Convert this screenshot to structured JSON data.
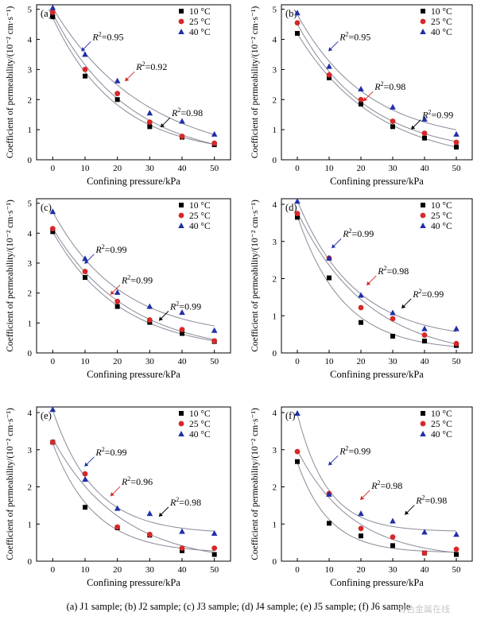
{
  "caption": "(a) J1 sample; (b) J2 sample; (c) J3 sample; (d) J4 sample; (e) J5 sample; (f) J6 sample",
  "watermark": "有色金属在线",
  "colors": {
    "10 °C": "#000000",
    "25 °C": "#d62828",
    "40 °C": "#1f2fa8",
    "fit": "#8a8a9a"
  },
  "chart_data": [
    {
      "type": "scatter",
      "panel_label": "(a)",
      "xlabel": "Confining pressure/kPa",
      "ylabel": "Coefficient of permeability/(10⁻² cm·s⁻¹)",
      "xlim": [
        0,
        50
      ],
      "ylim": [
        0,
        5
      ],
      "x_ticks": [
        "0",
        "10",
        "20",
        "30",
        "40",
        "50"
      ],
      "y_ticks": [
        "0",
        "1",
        "2",
        "3",
        "4",
        "5"
      ],
      "x": [
        0,
        10,
        20,
        30,
        40,
        50
      ],
      "series": [
        {
          "name": "10 °C",
          "marker": "square",
          "values": [
            4.75,
            2.78,
            2.0,
            1.1,
            0.75,
            0.5
          ]
        },
        {
          "name": "25 °C",
          "marker": "circle",
          "values": [
            4.9,
            3.0,
            2.2,
            1.25,
            0.78,
            0.55
          ]
        },
        {
          "name": "40 °C",
          "marker": "triangle",
          "values": [
            5.05,
            3.5,
            2.62,
            1.55,
            1.28,
            0.85
          ]
        }
      ],
      "annotations": [
        {
          "sup": "2",
          "value": "=0.95",
          "x": 12.3,
          "y": 3.98
        },
        {
          "sup": "2",
          "value": "=0.92",
          "x": 25.8,
          "y": 2.98
        },
        {
          "sup": "2",
          "value": "=0.98",
          "x": 36.8,
          "y": 1.45
        }
      ],
      "legend": "top-right"
    },
    {
      "type": "scatter",
      "panel_label": "(b)",
      "xlabel": "Confining pressure/kPa",
      "ylabel": "Coefficient of permeability/(10⁻² cm·s⁻¹)",
      "xlim": [
        0,
        50
      ],
      "ylim": [
        0,
        5
      ],
      "x_ticks": [
        "0",
        "10",
        "20",
        "30",
        "40",
        "50"
      ],
      "y_ticks": [
        "0",
        "1",
        "2",
        "3",
        "4",
        "5"
      ],
      "x": [
        0,
        10,
        20,
        30,
        40,
        50
      ],
      "series": [
        {
          "name": "10 °C",
          "marker": "square",
          "values": [
            4.2,
            2.72,
            1.85,
            1.1,
            0.72,
            0.42
          ]
        },
        {
          "name": "25 °C",
          "marker": "circle",
          "values": [
            4.55,
            2.82,
            2.0,
            1.28,
            0.88,
            0.58
          ]
        },
        {
          "name": "40 °C",
          "marker": "triangle",
          "values": [
            4.88,
            3.1,
            2.35,
            1.75,
            1.35,
            0.85
          ]
        }
      ],
      "annotations": [
        {
          "sup": "2",
          "value": "=0.95",
          "x": 13.3,
          "y": 3.98
        },
        {
          "sup": "2",
          "value": "=0.98",
          "x": 24.3,
          "y": 2.32
        },
        {
          "sup": "2",
          "value": "=0.99",
          "x": 39.3,
          "y": 1.38
        }
      ],
      "legend": "top-right"
    },
    {
      "type": "scatter",
      "panel_label": "(c)",
      "xlabel": "Confining pressure/kPa",
      "ylabel": "Coefficient of permeability/(10⁻² cm·s⁻¹)",
      "xlim": [
        0,
        50
      ],
      "ylim": [
        0,
        5
      ],
      "x_ticks": [
        "0",
        "10",
        "20",
        "30",
        "40",
        "50"
      ],
      "y_ticks": [
        "0",
        "1",
        "2",
        "3",
        "4",
        "5"
      ],
      "x": [
        0,
        10,
        20,
        30,
        40,
        50
      ],
      "series": [
        {
          "name": "10 °C",
          "marker": "square",
          "values": [
            4.05,
            2.52,
            1.55,
            1.02,
            0.65,
            0.38
          ]
        },
        {
          "name": "25 °C",
          "marker": "circle",
          "values": [
            4.15,
            2.72,
            1.72,
            1.1,
            0.78,
            0.4
          ]
        },
        {
          "name": "40 °C",
          "marker": "triangle",
          "values": [
            4.72,
            3.15,
            2.02,
            1.55,
            1.35,
            0.75
          ]
        }
      ],
      "annotations": [
        {
          "sup": "2",
          "value": "=0.99",
          "x": 13.3,
          "y": 3.35
        },
        {
          "sup": "2",
          "value": "=0.99",
          "x": 21.3,
          "y": 2.32
        },
        {
          "sup": "2",
          "value": "=0.99",
          "x": 36.3,
          "y": 1.45
        }
      ],
      "legend": "top-right"
    },
    {
      "type": "scatter",
      "panel_label": "(d)",
      "xlabel": "Confining pressure/kPa",
      "ylabel": "Coefficient of permeability/(10⁻² cm·s⁻¹)",
      "xlim": [
        0,
        50
      ],
      "ylim": [
        0,
        4
      ],
      "x_ticks": [
        "0",
        "10",
        "20",
        "30",
        "40",
        "50"
      ],
      "y_ticks": [
        "0",
        "1",
        "2",
        "3",
        "4"
      ],
      "x": [
        0,
        10,
        20,
        30,
        40,
        50
      ],
      "series": [
        {
          "name": "10 °C",
          "marker": "square",
          "values": [
            3.65,
            2.02,
            0.82,
            0.45,
            0.32,
            0.2
          ]
        },
        {
          "name": "25 °C",
          "marker": "circle",
          "values": [
            3.75,
            2.55,
            1.22,
            0.92,
            0.48,
            0.25
          ]
        },
        {
          "name": "40 °C",
          "marker": "triangle",
          "values": [
            4.08,
            2.55,
            1.55,
            1.08,
            0.65,
            0.65
          ]
        }
      ],
      "annotations": [
        {
          "sup": "2",
          "value": "=0.99",
          "x": 14.3,
          "y": 3.12
        },
        {
          "sup": "2",
          "value": "=0.98",
          "x": 25.3,
          "y": 2.12
        },
        {
          "sup": "2",
          "value": "=0.99",
          "x": 36.3,
          "y": 1.5
        }
      ],
      "legend": "top-right"
    },
    {
      "type": "scatter",
      "panel_label": "(e)",
      "xlabel": "Confining pressure/kPa",
      "ylabel": "Coefficient of permeability/(10⁻² cm·s⁻¹)",
      "xlim": [
        0,
        50
      ],
      "ylim": [
        0,
        4
      ],
      "x_ticks": [
        "0",
        "10",
        "20",
        "30",
        "40",
        "50"
      ],
      "y_ticks": [
        "0",
        "1",
        "2",
        "3",
        "4"
      ],
      "x": [
        0,
        10,
        20,
        30,
        40,
        50
      ],
      "series": [
        {
          "name": "10 °C",
          "marker": "square",
          "values": [
            3.2,
            1.45,
            0.9,
            0.7,
            0.28,
            0.18
          ]
        },
        {
          "name": "25 °C",
          "marker": "circle",
          "values": [
            3.2,
            2.35,
            0.92,
            0.72,
            0.35,
            0.35
          ]
        },
        {
          "name": "40 °C",
          "marker": "triangle",
          "values": [
            4.08,
            2.2,
            1.42,
            1.28,
            0.8,
            0.75
          ]
        }
      ],
      "annotations": [
        {
          "sup": "2",
          "value": "=0.99",
          "x": 13.3,
          "y": 2.85
        },
        {
          "sup": "2",
          "value": "=0.96",
          "x": 21.3,
          "y": 2.05
        },
        {
          "sup": "2",
          "value": "=0.98",
          "x": 36.3,
          "y": 1.5
        }
      ],
      "legend": "top-right"
    },
    {
      "type": "scatter",
      "panel_label": "(f)",
      "xlabel": "Confining pressure/kPa",
      "ylabel": "Coefficient of permeability/(10⁻² cm·s⁻¹)",
      "xlim": [
        0,
        50
      ],
      "ylim": [
        0,
        4
      ],
      "x_ticks": [
        "0",
        "10",
        "20",
        "30",
        "40",
        "50"
      ],
      "y_ticks": [
        "0",
        "1",
        "2",
        "3",
        "4"
      ],
      "x": [
        0,
        10,
        20,
        30,
        40,
        50
      ],
      "series": [
        {
          "name": "10 °C",
          "marker": "square",
          "values": [
            2.68,
            1.02,
            0.68,
            0.42,
            0.22,
            0.18
          ]
        },
        {
          "name": "25 °C",
          "marker": "circle",
          "values": [
            2.95,
            1.82,
            0.88,
            0.65,
            0.22,
            0.32
          ]
        },
        {
          "name": "40 °C",
          "marker": "triangle",
          "values": [
            3.98,
            1.8,
            1.28,
            1.08,
            0.78,
            0.72
          ]
        }
      ],
      "annotations": [
        {
          "sup": "2",
          "value": "=0.99",
          "x": 13.3,
          "y": 2.88
        },
        {
          "sup": "2",
          "value": "=0.98",
          "x": 23.3,
          "y": 1.95
        },
        {
          "sup": "2",
          "value": "=0.98",
          "x": 37.3,
          "y": 1.55
        }
      ],
      "legend": "top-right"
    }
  ]
}
